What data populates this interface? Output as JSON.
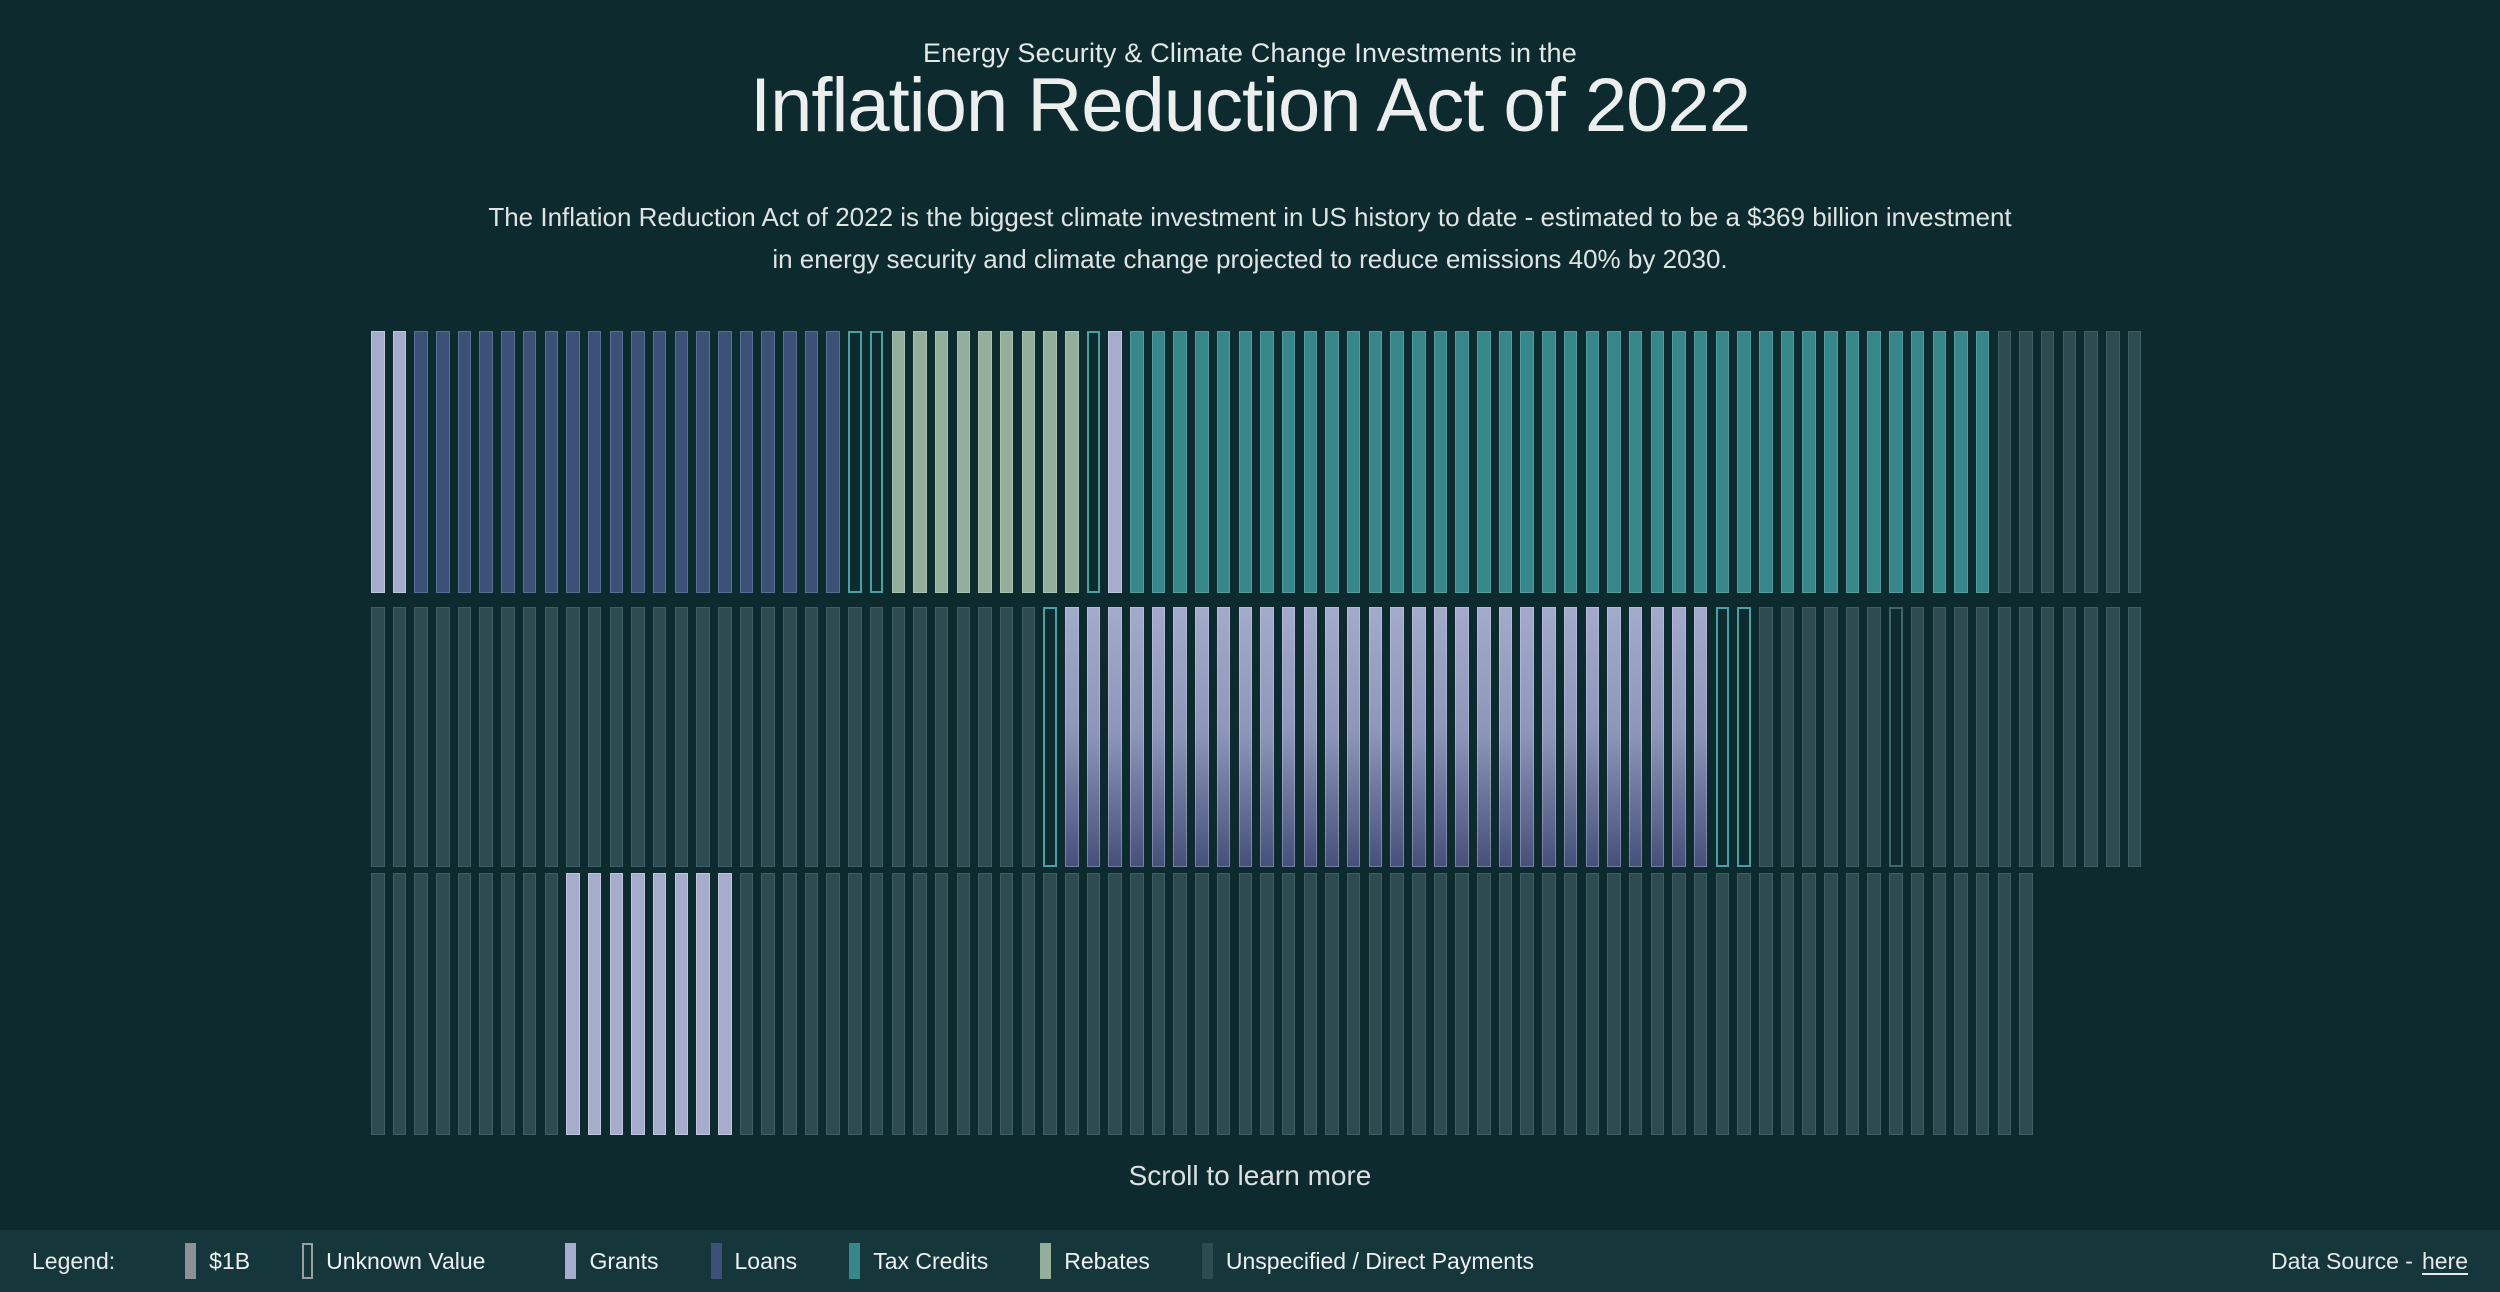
{
  "page": {
    "background": "#0d2a2f",
    "legend_bar_background": "#15363b",
    "text_color": "#e7eae8"
  },
  "header": {
    "kicker": "Energy Security & Climate Change Investments in the",
    "title": "Inflation Reduction Act of 2022",
    "subtitle_line1": "The Inflation Reduction Act of 2022 is the biggest climate investment in US history to date - estimated to be a $369 billion investment",
    "subtitle_line2": "in energy security and climate change projected to reduce emissions 40% by 2030."
  },
  "scroll_hint": "Scroll to learn more",
  "legend": {
    "label": "Legend:",
    "items": [
      {
        "key": "dollar",
        "label": "$1B",
        "style": "solid",
        "color": "#8e9193"
      },
      {
        "key": "unknown",
        "label": "Unknown Value",
        "style": "outline",
        "color": "#9aa0a1"
      },
      {
        "key": "grants",
        "label": "Grants",
        "style": "solid",
        "color": "#a7accd",
        "gap_before": true
      },
      {
        "key": "loans",
        "label": "Loans",
        "style": "solid",
        "color": "#3c5078"
      },
      {
        "key": "tax_credits",
        "label": "Tax Credits",
        "style": "solid",
        "color": "#37878a"
      },
      {
        "key": "rebates",
        "label": "Rebates",
        "style": "solid",
        "color": "#93ae9b"
      },
      {
        "key": "unspecified",
        "label": "Unspecified / Direct Payments",
        "style": "solid",
        "color": "#2d4b51"
      }
    ]
  },
  "footer": {
    "data_source_text": "Data Source -",
    "data_source_link": "here"
  },
  "chart_data": {
    "type": "bar",
    "subtype": "unit-waffle",
    "unit": "1 bar = $1B of investment; outlined bars = unknown value",
    "total_estimate": "$369 billion",
    "title": "Energy Security & Climate Change Investments in the Inflation Reduction Act of 2022",
    "legend_position": "bottom",
    "palette": {
      "grants": "#a7accd",
      "loans": "#3c5078",
      "tax_credits": "#37878a",
      "rebates": "#93ae9b",
      "unspecified": "#2d4b51",
      "unknown_tax_credits_border": "#4aa1a3",
      "unknown_unspecified_border": "#40666c",
      "grants_gradient_top": "#a3aacb",
      "grants_gradient_bottom": "#45507a"
    },
    "rows": [
      {
        "name": "row-1",
        "bars_total": 82,
        "runs": [
          {
            "category": "grants",
            "count": 2
          },
          {
            "category": "loans",
            "count": 20
          },
          {
            "category": "tax_credits_unknown",
            "count": 2
          },
          {
            "category": "rebates",
            "count": 9
          },
          {
            "category": "tax_credits_unknown",
            "count": 1
          },
          {
            "category": "grants",
            "count": 1
          },
          {
            "category": "tax_credits",
            "count": 40
          },
          {
            "category": "unspecified",
            "count": 7
          }
        ]
      },
      {
        "name": "row-2",
        "bars_total": 82,
        "runs": [
          {
            "category": "unspecified",
            "count": 31
          },
          {
            "category": "tax_credits_unknown",
            "count": 1
          },
          {
            "category": "grants_gradient",
            "count": 30
          },
          {
            "category": "tax_credits_unknown",
            "count": 2
          },
          {
            "category": "unspecified",
            "count": 6
          },
          {
            "category": "unspecified_unknown",
            "count": 1
          },
          {
            "category": "unspecified",
            "count": 11
          }
        ]
      },
      {
        "name": "row-3",
        "bars_total": 77,
        "runs": [
          {
            "category": "unspecified",
            "count": 9
          },
          {
            "category": "grants",
            "count": 8
          },
          {
            "category": "unspecified",
            "count": 60
          }
        ]
      }
    ]
  }
}
